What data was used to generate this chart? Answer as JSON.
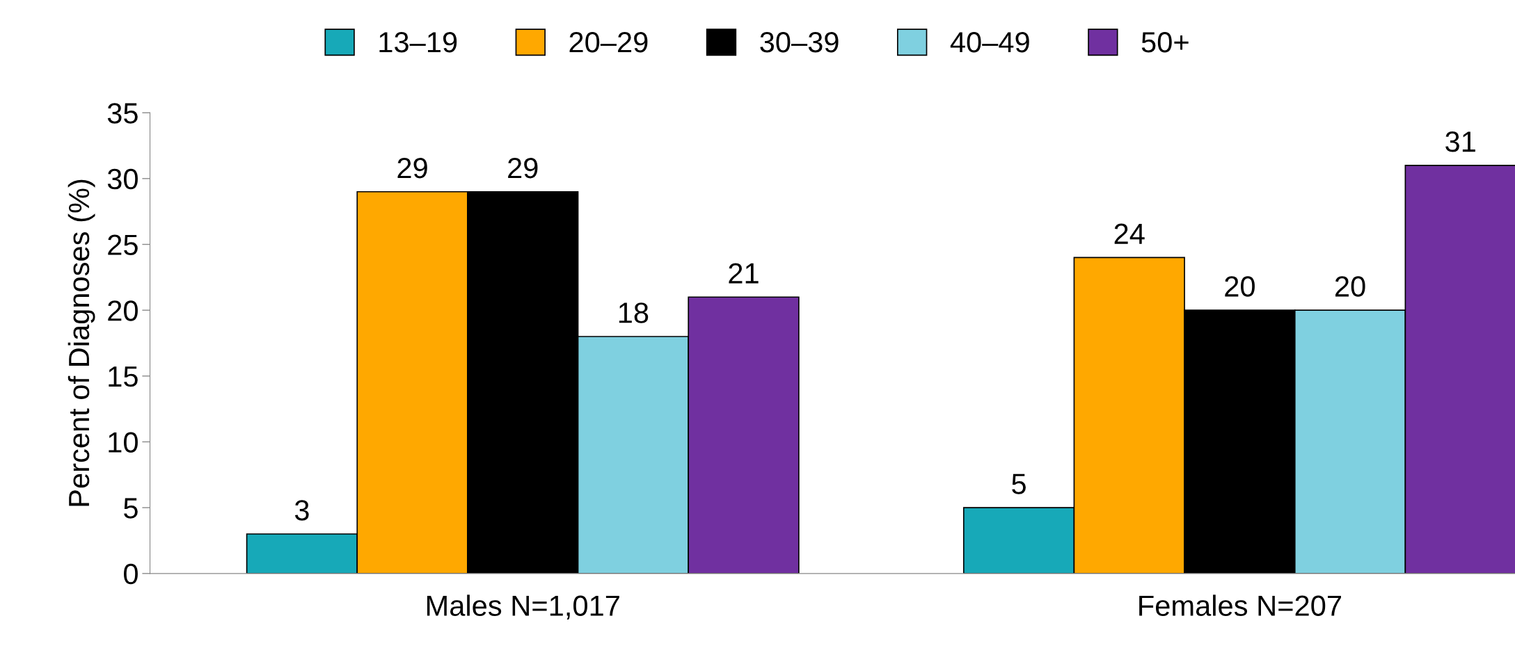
{
  "chart_data": {
    "type": "bar",
    "ylabel": "Percent of Diagnoses (%)",
    "categories": [
      "Males N=1,017",
      "Females N=207"
    ],
    "series": [
      {
        "name": "13–19",
        "color": "#17a9b8",
        "values": [
          3,
          5
        ]
      },
      {
        "name": "20–29",
        "color": "#ffa800",
        "values": [
          29,
          24
        ]
      },
      {
        "name": "30–39",
        "color": "#000000",
        "values": [
          29,
          20
        ]
      },
      {
        "name": "40–49",
        "color": "#7fd0e0",
        "values": [
          18,
          20
        ]
      },
      {
        "name": "50+",
        "color": "#7030a0",
        "values": [
          21,
          31
        ]
      }
    ],
    "ylim": [
      0,
      35
    ],
    "yticks": [
      0,
      5,
      10,
      15,
      20,
      25,
      30,
      35
    ],
    "grid": false,
    "legend": "top",
    "data_labels": true
  }
}
